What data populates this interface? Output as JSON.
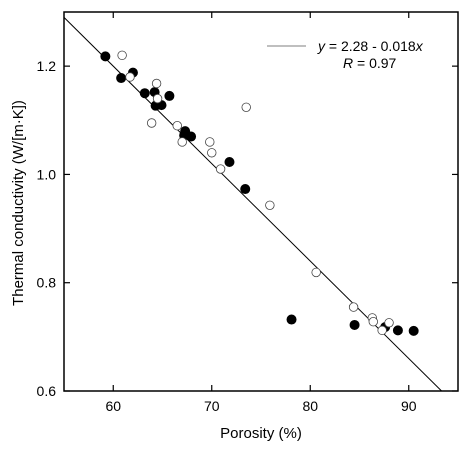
{
  "chart_data": {
    "type": "scatter",
    "xlabel": "Porosity (%)",
    "ylabel": "Thermal conductivity (W/[m·K])",
    "xlim": [
      55,
      95
    ],
    "ylim": [
      0.6,
      1.3
    ],
    "xticks": [
      "60",
      "70",
      "80",
      "90"
    ],
    "yticks": [
      "0.6",
      "0.8",
      "1.0",
      "1.2"
    ],
    "grid": false,
    "legend_position": "top-right",
    "legend": {
      "equation_prefix": "y",
      "equation_body": " = 2.28 - 0.018",
      "equation_suffix": "x",
      "r_prefix": "R",
      "r_body": " = 0.97"
    },
    "fit_line": {
      "intercept": 2.28,
      "slope": -0.018
    },
    "series": [
      {
        "marker": "filled",
        "color": "#000000",
        "points": [
          [
            59.2,
            1.218
          ],
          [
            60.8,
            1.178
          ],
          [
            62.0,
            1.188
          ],
          [
            63.2,
            1.15
          ],
          [
            64.2,
            1.152
          ],
          [
            64.3,
            1.127
          ],
          [
            64.9,
            1.128
          ],
          [
            65.7,
            1.145
          ],
          [
            67.3,
            1.08
          ],
          [
            67.2,
            1.072
          ],
          [
            67.9,
            1.07
          ],
          [
            71.8,
            1.023
          ],
          [
            73.4,
            0.973
          ],
          [
            78.1,
            0.732
          ],
          [
            84.5,
            0.722
          ],
          [
            87.6,
            0.718
          ],
          [
            88.9,
            0.712
          ],
          [
            90.5,
            0.711
          ]
        ]
      },
      {
        "marker": "open",
        "color": "#000000",
        "points": [
          [
            60.9,
            1.22
          ],
          [
            61.7,
            1.18
          ],
          [
            63.9,
            1.095
          ],
          [
            64.4,
            1.168
          ],
          [
            64.5,
            1.14
          ],
          [
            66.5,
            1.09
          ],
          [
            67.0,
            1.06
          ],
          [
            69.8,
            1.06
          ],
          [
            70.0,
            1.04
          ],
          [
            70.9,
            1.01
          ],
          [
            73.5,
            1.124
          ],
          [
            75.9,
            0.943
          ],
          [
            80.6,
            0.819
          ],
          [
            84.4,
            0.755
          ],
          [
            86.3,
            0.735
          ],
          [
            86.4,
            0.728
          ],
          [
            87.3,
            0.712
          ],
          [
            88.0,
            0.726
          ]
        ]
      }
    ]
  }
}
